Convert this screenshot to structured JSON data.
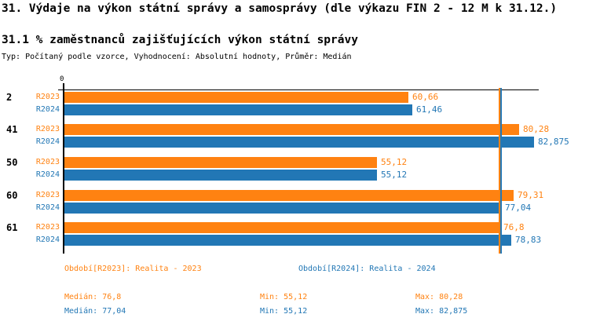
{
  "header": {
    "title": "31. Výdaje na výkon státní správy a samosprávy (dle výkazu FIN 2 - 12 M k 31.12.)",
    "subtitle": "31.1 % zaměstnanců zajišťujících výkon státní správy",
    "meta": "Typ: Počítaný podle vzorce, Vyhodnocení: Absolutní hodnoty, Průměr: Medián"
  },
  "colors": {
    "orange": "#FF8211",
    "blue": "#2277B5",
    "axis": "#000000",
    "background": "#FFFFFF"
  },
  "chart_data": {
    "type": "bar",
    "orientation": "horizontal",
    "title": "31.1 % zaměstnanců zajišťujících výkon státní správy",
    "categories": [
      "2",
      "41",
      "50",
      "60",
      "61"
    ],
    "series": [
      {
        "name": "R2023",
        "legend": "Období[R2023]: Realita - 2023",
        "color": "#FF8211",
        "values": [
          60.66,
          80.28,
          55.12,
          79.31,
          76.8
        ],
        "value_labels": [
          "60,66",
          "80,28",
          "55,12",
          "79,31",
          "76,8"
        ],
        "median": 76.8,
        "min": 55.12,
        "max": 80.28
      },
      {
        "name": "R2024",
        "legend": "Období[R2024]: Realita - 2024",
        "color": "#2277B5",
        "values": [
          61.46,
          82.875,
          55.12,
          77.04,
          78.83
        ],
        "value_labels": [
          "61,46",
          "82,875",
          "55,12",
          "77,04",
          "78,83"
        ],
        "median": 77.04,
        "min": 55.12,
        "max": 82.875
      }
    ],
    "xlim": [
      0,
      83.7
    ],
    "origin_label": "0",
    "grid": false,
    "legend_position": "bottom",
    "value_decimal_separator": ","
  },
  "stats": [
    {
      "series": "R2023",
      "color": "#FF8211",
      "median_label": "Medián:",
      "median_value": "76,8",
      "min_label": "Min:",
      "min_value": "55,12",
      "max_label": "Max:",
      "max_value": "80,28"
    },
    {
      "series": "R2024",
      "color": "#2277B5",
      "median_label": "Medián:",
      "median_value": "77,04",
      "min_label": "Min:",
      "min_value": "55,12",
      "max_label": "Max:",
      "max_value": "82,875"
    }
  ]
}
